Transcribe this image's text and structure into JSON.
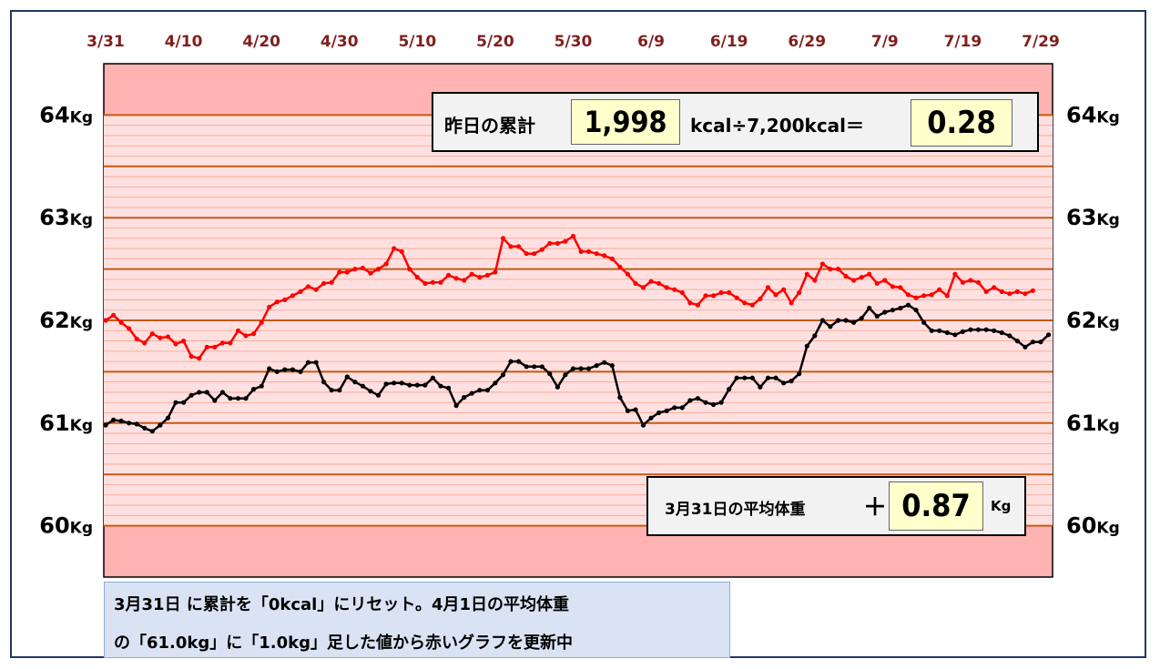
{
  "colors": {
    "frame": "#1f3864",
    "band_light": "#ffe0e0",
    "band_dark": "#ffb3b3",
    "gridline": "#c55a11",
    "date_label": "#7f1f1f",
    "red_series": "#ff0000",
    "black_series": "#000000",
    "note_bg": "#dae3f3",
    "value_box": "#ffffcc"
  },
  "summary_box": {
    "label": "昨日の累計",
    "kcal_value": "1,998",
    "formula_unit": "kcal÷7,200kcal＝",
    "result": "0.28"
  },
  "avg_box": {
    "label": "3月31日の平均体重",
    "plus": "＋",
    "value": "0.87",
    "unit": "Kg"
  },
  "note": {
    "line1": "3月31日 に累計を「0kcal」にリセット。4月1日の平均体重",
    "line2": "の「61.0kg」に「1.0kg」足した値から赤いグラフを更新中"
  },
  "chart_data": {
    "type": "line",
    "x_tick_labels": [
      "3/31",
      "4/10",
      "4/20",
      "4/30",
      "5/10",
      "5/20",
      "5/30",
      "6/9",
      "6/19",
      "6/29",
      "7/9",
      "7/19",
      "7/29"
    ],
    "y_tick_labels_left": [
      "64Kg",
      "63Kg",
      "62Kg",
      "61Kg",
      "60Kg"
    ],
    "y_tick_labels_right": [
      "64Kg",
      "63Kg",
      "62Kg",
      "61Kg",
      "60Kg"
    ],
    "y_ticks": [
      64,
      63,
      62,
      61,
      60
    ],
    "ylim": [
      59.5,
      64.5
    ],
    "x_day_range": [
      0,
      120
    ],
    "series": [
      {
        "color": "#ff0000",
        "values": [
          62.0,
          62.05,
          61.98,
          61.92,
          61.82,
          61.78,
          61.87,
          61.83,
          61.84,
          61.77,
          61.8,
          61.65,
          61.63,
          61.74,
          61.74,
          61.78,
          61.78,
          61.9,
          61.85,
          61.87,
          61.98,
          62.13,
          62.18,
          62.2,
          62.24,
          62.28,
          62.33,
          62.3,
          62.36,
          62.37,
          62.47,
          62.47,
          62.5,
          62.51,
          62.46,
          62.5,
          62.55,
          62.7,
          62.67,
          62.5,
          62.42,
          62.36,
          62.37,
          62.37,
          62.44,
          62.41,
          62.39,
          62.45,
          62.42,
          62.44,
          62.47,
          62.8,
          62.72,
          62.72,
          62.65,
          62.65,
          62.69,
          62.75,
          62.75,
          62.77,
          62.82,
          62.67,
          62.67,
          62.65,
          62.63,
          62.6,
          62.52,
          62.45,
          62.36,
          62.32,
          62.38,
          62.36,
          62.32,
          62.3,
          62.27,
          62.17,
          62.15,
          62.24,
          62.24,
          62.27,
          62.27,
          62.22,
          62.17,
          62.15,
          62.21,
          62.32,
          62.25,
          62.3,
          62.17,
          62.27,
          62.45,
          62.39,
          62.55,
          62.5,
          62.5,
          62.43,
          62.39,
          62.42,
          62.45,
          62.36,
          62.39,
          62.33,
          62.32,
          62.25,
          62.22,
          62.24,
          62.25,
          62.3,
          62.24,
          62.45,
          62.37,
          62.39,
          62.37,
          62.28,
          62.32,
          62.28,
          62.26,
          62.28,
          62.26,
          62.29
        ],
        "name": ""
      },
      {
        "color": "#000000",
        "values": [
          60.98,
          61.03,
          61.02,
          61.0,
          60.99,
          60.95,
          60.92,
          60.98,
          61.05,
          61.2,
          61.2,
          61.27,
          61.3,
          61.3,
          61.22,
          61.3,
          61.24,
          61.24,
          61.24,
          61.33,
          61.36,
          61.53,
          61.5,
          61.52,
          61.52,
          61.5,
          61.59,
          61.59,
          61.4,
          61.32,
          61.32,
          61.45,
          61.4,
          61.36,
          61.31,
          61.27,
          61.38,
          61.39,
          61.39,
          61.37,
          61.37,
          61.37,
          61.44,
          61.36,
          61.34,
          61.17,
          61.25,
          61.29,
          61.32,
          61.32,
          61.39,
          61.47,
          61.6,
          61.6,
          61.55,
          61.55,
          61.55,
          61.48,
          61.35,
          61.47,
          61.53,
          61.53,
          61.53,
          61.56,
          61.59,
          61.56,
          61.25,
          61.12,
          61.13,
          60.98,
          61.05,
          61.1,
          61.12,
          61.15,
          61.15,
          61.22,
          61.24,
          61.2,
          61.18,
          61.2,
          61.33,
          61.44,
          61.44,
          61.44,
          61.35,
          61.44,
          61.44,
          61.39,
          61.41,
          61.48,
          61.75,
          61.85,
          62.0,
          61.94,
          62.0,
          62.0,
          61.98,
          62.02,
          62.12,
          62.04,
          62.08,
          62.1,
          62.12,
          62.15,
          62.1,
          61.98,
          61.9,
          61.9,
          61.88,
          61.86,
          61.89,
          61.91,
          61.91,
          61.91,
          61.9,
          61.88,
          61.85,
          61.8,
          61.74,
          61.79,
          61.79,
          61.86
        ],
        "name": ""
      }
    ]
  }
}
